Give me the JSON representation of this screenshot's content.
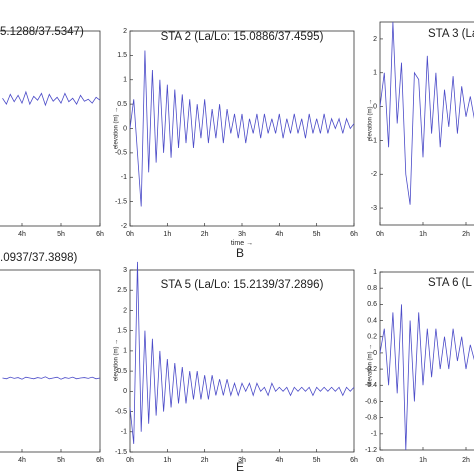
{
  "chart_data": [
    {
      "type": "line",
      "title": "5.1288/37.5347)",
      "x": [
        3.5,
        3.6,
        3.7,
        3.8,
        3.9,
        4.0,
        4.1,
        4.2,
        4.3,
        4.4,
        4.5,
        4.6,
        4.7,
        4.8,
        4.9,
        5.0,
        5.1,
        5.2,
        5.3,
        5.4,
        5.5,
        5.6,
        5.7,
        5.8,
        5.9,
        6.0
      ],
      "series": [
        {
          "color": "#4b4bc8",
          "values": [
            0.62,
            0.5,
            0.7,
            0.55,
            0.68,
            0.52,
            0.75,
            0.5,
            0.66,
            0.58,
            0.72,
            0.48,
            0.7,
            0.56,
            0.64,
            0.52,
            0.72,
            0.55,
            0.62,
            0.5,
            0.68,
            0.56,
            0.6,
            0.52,
            0.64,
            0.58
          ]
        }
      ],
      "xlim": [
        0,
        6
      ],
      "ylim": [
        -2,
        2
      ],
      "xticks": [
        {
          "value": 4,
          "label": "4h"
        },
        {
          "value": 5,
          "label": "5h"
        },
        {
          "value": 6,
          "label": "6h"
        }
      ]
    },
    {
      "type": "line",
      "title": "STA 2 (La/Lo: 15.0886/37.4595)",
      "x_label": "time →",
      "y_label": "elevation (m) →",
      "panel_label": "B",
      "x": [
        0,
        0.1,
        0.2,
        0.3,
        0.4,
        0.5,
        0.6,
        0.7,
        0.8,
        0.9,
        1.0,
        1.1,
        1.2,
        1.3,
        1.4,
        1.5,
        1.6,
        1.7,
        1.8,
        1.9,
        2.0,
        2.1,
        2.2,
        2.3,
        2.4,
        2.5,
        2.6,
        2.7,
        2.8,
        2.9,
        3.0,
        3.1,
        3.2,
        3.3,
        3.4,
        3.5,
        3.6,
        3.7,
        3.8,
        3.9,
        4.0,
        4.1,
        4.2,
        4.3,
        4.4,
        4.5,
        4.6,
        4.7,
        4.8,
        4.9,
        5.0,
        5.1,
        5.2,
        5.3,
        5.4,
        5.5,
        5.6,
        5.7,
        5.8,
        5.9,
        6.0
      ],
      "series": [
        {
          "color": "#4b4bc8",
          "values": [
            0,
            0.6,
            -0.5,
            -1.6,
            1.6,
            -0.9,
            1.2,
            -0.7,
            1.0,
            -0.5,
            0.9,
            -0.6,
            0.8,
            -0.4,
            0.7,
            -0.3,
            0.6,
            -0.4,
            0.5,
            -0.2,
            0.6,
            -0.3,
            0.4,
            -0.2,
            0.5,
            -0.3,
            0.4,
            -0.1,
            0.3,
            -0.2,
            0.3,
            -0.3,
            0.2,
            -0.1,
            0.3,
            -0.2,
            0.3,
            -0.1,
            0.2,
            -0.1,
            0.3,
            -0.2,
            0.2,
            -0.1,
            0.3,
            -0.1,
            0.2,
            -0.2,
            0.3,
            -0.1,
            0.2,
            -0.1,
            0.3,
            -0.1,
            0.2,
            0,
            0.2,
            -0.1,
            0.2,
            0,
            0.1
          ]
        }
      ],
      "xlim": [
        0,
        6
      ],
      "ylim": [
        -2,
        2
      ],
      "xticks": [
        {
          "value": 0,
          "label": "0h"
        },
        {
          "value": 1,
          "label": "1h"
        },
        {
          "value": 2,
          "label": "2h"
        },
        {
          "value": 3,
          "label": "3h"
        },
        {
          "value": 4,
          "label": "4h"
        },
        {
          "value": 5,
          "label": "5h"
        },
        {
          "value": 6,
          "label": "6h"
        }
      ],
      "yticks": [
        -2,
        -1.5,
        -1,
        -0.5,
        0,
        0.5,
        1,
        1.5,
        2
      ]
    },
    {
      "type": "line",
      "title": "STA 3 (La",
      "y_label": "elevation (m) →",
      "x": [
        0,
        0.1,
        0.2,
        0.3,
        0.4,
        0.5,
        0.6,
        0.7,
        0.8,
        0.9,
        1.0,
        1.1,
        1.2,
        1.3,
        1.4,
        1.5,
        1.6,
        1.7,
        1.8,
        1.9,
        2.0,
        2.1,
        2.2
      ],
      "series": [
        {
          "color": "#4b4bc8",
          "values": [
            0,
            1.0,
            -1.2,
            2.5,
            -0.5,
            1.3,
            -2.0,
            -2.9,
            1.0,
            0.8,
            -1.5,
            1.5,
            -0.8,
            1.0,
            -1.2,
            0.5,
            -0.6,
            0.9,
            -0.8,
            0.6,
            -0.3,
            0.3,
            -0.4
          ]
        }
      ],
      "xlim": [
        0,
        6
      ],
      "ylim": [
        -3.5,
        2.5
      ],
      "xticks": [
        {
          "value": 0,
          "label": "0h"
        },
        {
          "value": 1,
          "label": "1h"
        },
        {
          "value": 2,
          "label": "2h"
        }
      ],
      "yticks": [
        -3,
        -2,
        -1,
        0,
        1,
        2
      ]
    },
    {
      "type": "line",
      "title": ".0937/37.3898)",
      "x": [
        3.5,
        3.6,
        3.7,
        3.8,
        3.9,
        4.0,
        4.1,
        4.2,
        4.3,
        4.4,
        4.5,
        4.6,
        4.7,
        4.8,
        4.9,
        5.0,
        5.1,
        5.2,
        5.3,
        5.4,
        5.5,
        5.6,
        5.7,
        5.8,
        5.9,
        6.0
      ],
      "series": [
        {
          "color": "#4b4bc8",
          "values": [
            0.33,
            0.31,
            0.35,
            0.32,
            0.34,
            0.3,
            0.35,
            0.33,
            0.31,
            0.34,
            0.32,
            0.36,
            0.31,
            0.33,
            0.35,
            0.3,
            0.34,
            0.32,
            0.35,
            0.31,
            0.33,
            0.34,
            0.32,
            0.35,
            0.31,
            0.33
          ]
        }
      ],
      "xlim": [
        0,
        6
      ],
      "ylim": [
        -1.5,
        3
      ],
      "xticks": [
        {
          "value": 4,
          "label": "4h"
        },
        {
          "value": 5,
          "label": "5h"
        },
        {
          "value": 6,
          "label": "6h"
        }
      ]
    },
    {
      "type": "line",
      "title": "STA 5 (La/Lo: 15.2139/37.2896)",
      "y_label": "elevation (m) →",
      "panel_label": "E",
      "x": [
        0,
        0.1,
        0.2,
        0.3,
        0.4,
        0.5,
        0.6,
        0.7,
        0.8,
        0.9,
        1.0,
        1.1,
        1.2,
        1.3,
        1.4,
        1.5,
        1.6,
        1.7,
        1.8,
        1.9,
        2.0,
        2.1,
        2.2,
        2.3,
        2.4,
        2.5,
        2.6,
        2.7,
        2.8,
        2.9,
        3.0,
        3.1,
        3.2,
        3.3,
        3.4,
        3.5,
        3.6,
        3.7,
        3.8,
        3.9,
        4.0,
        4.1,
        4.2,
        4.3,
        4.4,
        4.5,
        4.6,
        4.7,
        4.8,
        4.9,
        5.0,
        5.1,
        5.2,
        5.3,
        5.4,
        5.5,
        5.6,
        5.7,
        5.8,
        5.9,
        6.0
      ],
      "series": [
        {
          "color": "#4b4bc8",
          "values": [
            -0.4,
            -1.3,
            3.2,
            -1.0,
            1.5,
            -0.8,
            1.3,
            -0.6,
            1.0,
            -0.5,
            0.8,
            -0.4,
            0.7,
            -0.3,
            0.6,
            -0.3,
            0.5,
            -0.2,
            0.5,
            -0.2,
            0.4,
            -0.2,
            0.4,
            -0.1,
            0.3,
            -0.1,
            0.3,
            -0.1,
            0.2,
            -0.1,
            0.2,
            0,
            0.2,
            -0.1,
            0.2,
            0,
            0.1,
            -0.1,
            0.2,
            0,
            0.1,
            0,
            0.1,
            -0.1,
            0.1,
            0,
            0.1,
            0,
            0.1,
            -0.1,
            0.1,
            0,
            0.1,
            0,
            0.1,
            0,
            0.1,
            -0.1,
            0.1,
            0,
            0.1
          ]
        }
      ],
      "xlim": [
        0,
        6
      ],
      "ylim": [
        -1.5,
        3
      ],
      "xticks": [
        {
          "value": 0,
          "label": "0h"
        },
        {
          "value": 1,
          "label": "1h"
        },
        {
          "value": 2,
          "label": "2h"
        },
        {
          "value": 3,
          "label": "3h"
        },
        {
          "value": 4,
          "label": "4h"
        },
        {
          "value": 5,
          "label": "5h"
        },
        {
          "value": 6,
          "label": "6h"
        }
      ],
      "yticks": [
        -1.5,
        -1,
        -0.5,
        0,
        0.5,
        1,
        1.5,
        2,
        2.5,
        3
      ]
    },
    {
      "type": "line",
      "title": "STA 6 (L",
      "y_label": "elevation (m) →",
      "x": [
        0,
        0.1,
        0.2,
        0.3,
        0.4,
        0.5,
        0.6,
        0.7,
        0.8,
        0.9,
        1.0,
        1.1,
        1.2,
        1.3,
        1.4,
        1.5,
        1.6,
        1.7,
        1.8,
        1.9,
        2.0,
        2.1,
        2.2
      ],
      "series": [
        {
          "color": "#4b4bc8",
          "values": [
            0,
            0.3,
            -0.4,
            0.5,
            -0.5,
            0.6,
            -1.2,
            0.4,
            -0.6,
            0.5,
            -0.4,
            0.3,
            -0.3,
            0.3,
            -0.2,
            0.2,
            -0.2,
            0.3,
            -0.1,
            0.2,
            -0.2,
            0.1,
            -0.1
          ]
        }
      ],
      "xlim": [
        0,
        6
      ],
      "ylim": [
        -1.2,
        1
      ],
      "xticks": [
        {
          "value": 0,
          "label": "0h"
        },
        {
          "value": 1,
          "label": "1h"
        },
        {
          "value": 2,
          "label": "2h"
        }
      ],
      "yticks": [
        -1.2,
        -1,
        -0.8,
        -0.6,
        -0.4,
        -0.2,
        0,
        0.2,
        0.4,
        0.6,
        0.8,
        1
      ]
    }
  ]
}
